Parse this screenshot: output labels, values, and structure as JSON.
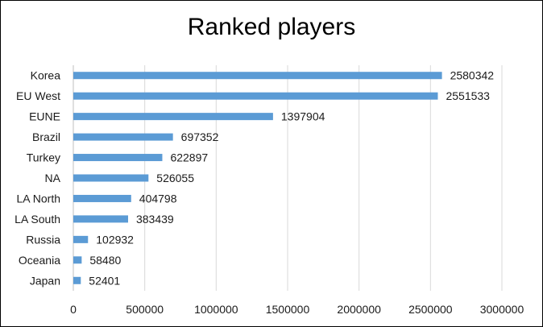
{
  "chart_data": {
    "type": "bar",
    "orientation": "horizontal",
    "title": "Ranked players",
    "xlabel": "",
    "ylabel": "",
    "categories": [
      "Korea",
      "EU West",
      "EUNE",
      "Brazil",
      "Turkey",
      "NA",
      "LA North",
      "LA South",
      "Russia",
      "Oceania",
      "Japan"
    ],
    "values": [
      2580342,
      2551533,
      1397904,
      697352,
      622897,
      526055,
      404798,
      383439,
      102932,
      58480,
      52401
    ],
    "xlim": [
      0,
      3000000
    ],
    "xticks": [
      0,
      500000,
      1000000,
      1500000,
      2000000,
      2500000,
      3000000
    ],
    "xtick_labels": [
      "0",
      "500000",
      "1000000",
      "1500000",
      "2000000",
      "2500000",
      "3000000"
    ],
    "grid": "vertical",
    "legend": "none",
    "data_labels": true,
    "bar_color": "#5b9bd5",
    "grid_color": "#d9d9d9"
  }
}
